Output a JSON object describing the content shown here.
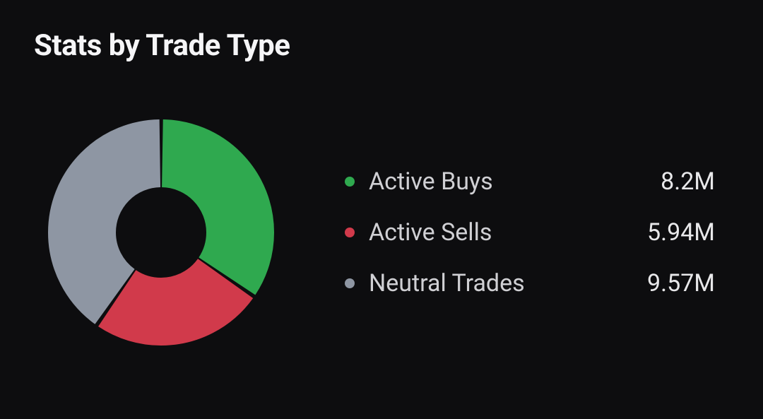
{
  "title": "Stats by Trade Type",
  "chart": {
    "type": "donut",
    "background_color": "#0d0d0f",
    "stroke_width": 60,
    "gap_deg": 2,
    "title_fontsize": 42,
    "legend_fontsize": 34,
    "text_color": "#d0d0d4",
    "value_color": "#e8e8ea",
    "segments": [
      {
        "key": "active_buys",
        "label": "Active Buys",
        "value_display": "8.2M",
        "value": 8.2,
        "color": "#2fa94f"
      },
      {
        "key": "active_sells",
        "label": "Active Sells",
        "value_display": "5.94M",
        "value": 5.94,
        "color": "#d13a4b"
      },
      {
        "key": "neutral_trades",
        "label": "Neutral Trades",
        "value_display": "9.57M",
        "value": 9.57,
        "color": "#8e96a3"
      }
    ]
  }
}
